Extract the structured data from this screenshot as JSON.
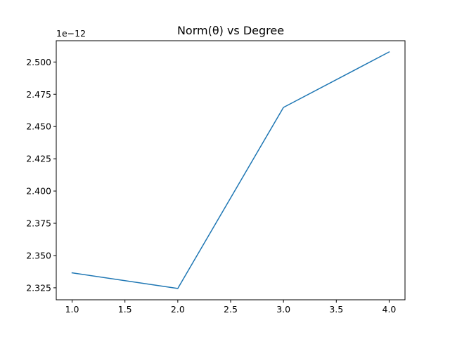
{
  "chart_data": {
    "type": "line",
    "title": "Norm(θ) vs Degree",
    "xlabel": "",
    "ylabel": "",
    "y_offset_label": "1e−12",
    "xlim": [
      0.85,
      4.15
    ],
    "ylim": [
      2.3157,
      2.5165
    ],
    "x_ticks": [
      1.0,
      1.5,
      2.0,
      2.5,
      3.0,
      3.5,
      4.0
    ],
    "x_tick_labels": [
      "1.0",
      "1.5",
      "2.0",
      "2.5",
      "3.0",
      "3.5",
      "4.0"
    ],
    "y_ticks": [
      2.325,
      2.35,
      2.375,
      2.4,
      2.425,
      2.45,
      2.475,
      2.5
    ],
    "y_tick_labels": [
      "2.325",
      "2.350",
      "2.375",
      "2.400",
      "2.425",
      "2.450",
      "2.475",
      "2.500"
    ],
    "grid": false,
    "series": [
      {
        "color": "#1f77b4",
        "x": [
          1,
          2,
          3,
          4
        ],
        "y": [
          2.3366,
          2.3245,
          2.4648,
          2.5078
        ]
      }
    ]
  }
}
